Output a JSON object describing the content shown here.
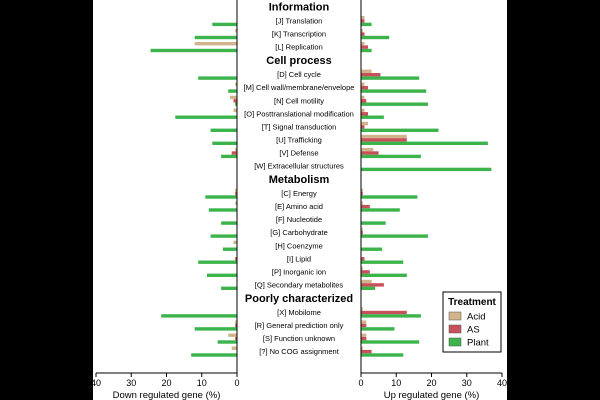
{
  "chart_data": {
    "type": "bar",
    "orientation": "horizontal",
    "layout": "mirrored-panels",
    "panels": [
      {
        "id": "down",
        "xlabel": "Down regulated gene (%)",
        "xlim": [
          0,
          40
        ],
        "direction": "leftward",
        "ticks": [
          40,
          30,
          20,
          10,
          0
        ]
      },
      {
        "id": "up",
        "xlabel": "Up regulated gene (%)",
        "xlim": [
          0,
          40
        ],
        "direction": "rightward",
        "ticks": [
          0,
          10,
          20,
          30,
          40
        ]
      }
    ],
    "series": [
      {
        "name": "Acid",
        "color": "#d2b48c"
      },
      {
        "name": "AS",
        "color": "#c8505a"
      },
      {
        "name": "Plant",
        "color": "#3cb44b"
      }
    ],
    "legend": {
      "title": "Treatment",
      "position": "bottom-right"
    },
    "groups": [
      {
        "title": "Information",
        "categories": [
          {
            "label": "[J] Translation",
            "down": [
              0,
              0,
              7
            ],
            "up": [
              1,
              1,
              3
            ]
          },
          {
            "label": "[K] Transcription",
            "down": [
              0.5,
              0,
              12
            ],
            "up": [
              0.5,
              1,
              8
            ]
          },
          {
            "label": "[L] Replication",
            "down": [
              12,
              0,
              24.5
            ],
            "up": [
              1,
              2,
              3
            ]
          }
        ]
      },
      {
        "title": "Cell process",
        "categories": [
          {
            "label": "[D] Cell cycle",
            "down": [
              0,
              0,
              11
            ],
            "up": [
              3,
              5.5,
              16.5
            ]
          },
          {
            "label": "[M] Cell wall/membrane/envelope",
            "down": [
              0.5,
              0,
              2.5
            ],
            "up": [
              1,
              2,
              18.5
            ]
          },
          {
            "label": "[N] Cell motility",
            "down": [
              2,
              1,
              0.5
            ],
            "up": [
              1,
              1.5,
              19
            ]
          },
          {
            "label": "[O] Posttranslational modification",
            "down": [
              1,
              0,
              17.5
            ],
            "up": [
              1,
              2,
              6.5
            ]
          },
          {
            "label": "[T] Signal transduction",
            "down": [
              0,
              0,
              7.5
            ],
            "up": [
              2,
              1,
              22
            ]
          },
          {
            "label": "[U] Trafficking",
            "down": [
              0,
              0,
              7
            ],
            "up": [
              13,
              13,
              36
            ]
          },
          {
            "label": "[V] Defense",
            "down": [
              0.5,
              1.5,
              4.5
            ],
            "up": [
              3.5,
              5,
              17
            ]
          },
          {
            "label": "[W] Extracellular structures",
            "down": [
              0,
              0,
              0
            ],
            "up": [
              0,
              0,
              37
            ]
          }
        ]
      },
      {
        "title": "Metabolism",
        "categories": [
          {
            "label": "[C] Energy",
            "down": [
              0.5,
              0.5,
              9
            ],
            "up": [
              0.5,
              0.5,
              16
            ]
          },
          {
            "label": "[E] Amino acid",
            "down": [
              0.5,
              0,
              8
            ],
            "up": [
              0.5,
              2.5,
              11
            ]
          },
          {
            "label": "[F] Nucleotide",
            "down": [
              0,
              0,
              4.5
            ],
            "up": [
              0,
              0,
              7
            ]
          },
          {
            "label": "[G] Carbohydrate",
            "down": [
              0,
              0,
              7.5
            ],
            "up": [
              0.5,
              0.5,
              19
            ]
          },
          {
            "label": "[H] Coenzyme",
            "down": [
              1,
              0,
              4
            ],
            "up": [
              0,
              0,
              6
            ]
          },
          {
            "label": "[I] Lipid",
            "down": [
              0,
              0.5,
              11
            ],
            "up": [
              0,
              1,
              12
            ]
          },
          {
            "label": "[P] Inorganic ion",
            "down": [
              0,
              0,
              8.5
            ],
            "up": [
              0.5,
              2.5,
              13
            ]
          },
          {
            "label": "[Q] Secondary metabolites",
            "down": [
              0,
              0,
              4.5
            ],
            "up": [
              3,
              6.5,
              4
            ]
          }
        ]
      },
      {
        "title": "Poorly characterized",
        "categories": [
          {
            "label": "[X] Mobilome",
            "down": [
              0,
              0,
              21.5
            ],
            "up": [
              0.5,
              13,
              17
            ]
          },
          {
            "label": "[R] General prediction only",
            "down": [
              0.5,
              0.5,
              12
            ],
            "up": [
              1.5,
              1.5,
              9.5
            ]
          },
          {
            "label": "[S] Function unknown",
            "down": [
              2.5,
              0.5,
              5.5
            ],
            "up": [
              1.5,
              1.5,
              16.5
            ]
          },
          {
            "label": "[?] No COG assignment",
            "down": [
              1.5,
              0,
              13
            ],
            "up": [
              0.5,
              3,
              12
            ]
          }
        ]
      }
    ]
  }
}
